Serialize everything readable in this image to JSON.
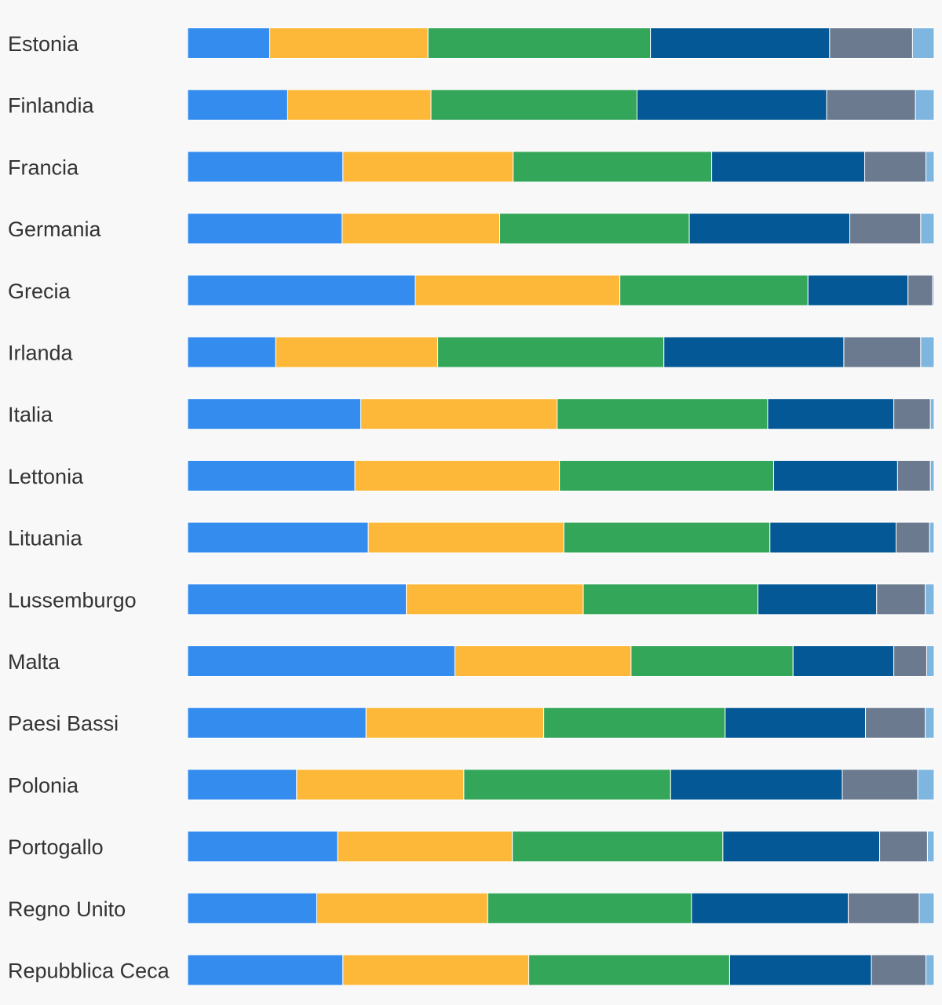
{
  "chart_data": {
    "type": "bar",
    "orientation": "horizontal",
    "stacked": "percent",
    "title": "",
    "xlabel": "",
    "ylabel": "",
    "xlim": [
      0,
      100
    ],
    "grid": false,
    "legend": "none",
    "categories": [
      "Estonia",
      "Finlandia",
      "Francia",
      "Germania",
      "Grecia",
      "Irlanda",
      "Italia",
      "Lettonia",
      "Lituania",
      "Lussemburgo",
      "Malta",
      "Paesi Bassi",
      "Polonia",
      "Portogallo",
      "Regno Unito",
      "Repubblica Ceca"
    ],
    "series": [
      {
        "color": "#348cee",
        "values": [
          11.0,
          13.4,
          20.8,
          20.7,
          30.5,
          11.8,
          23.2,
          22.4,
          24.2,
          29.3,
          35.8,
          23.9,
          14.6,
          20.1,
          17.3,
          20.8
        ]
      },
      {
        "color": "#fdb83a",
        "values": [
          21.2,
          19.2,
          22.8,
          21.1,
          27.4,
          21.7,
          26.3,
          27.4,
          26.2,
          23.7,
          23.6,
          23.8,
          22.4,
          23.4,
          22.9,
          24.9
        ]
      },
      {
        "color": "#34a65a",
        "values": [
          29.8,
          27.6,
          26.6,
          25.4,
          25.2,
          30.3,
          28.2,
          28.7,
          27.6,
          23.4,
          21.7,
          24.3,
          27.7,
          28.2,
          27.3,
          26.9
        ]
      },
      {
        "color": "#035895",
        "values": [
          24.0,
          25.4,
          20.5,
          21.5,
          13.4,
          24.1,
          16.9,
          16.6,
          16.9,
          15.9,
          13.5,
          18.8,
          23.0,
          21.0,
          21.0,
          19.0
        ]
      },
      {
        "color": "#6b7a8f",
        "values": [
          11.1,
          11.9,
          8.2,
          9.5,
          3.3,
          10.3,
          4.9,
          4.4,
          4.5,
          6.5,
          4.4,
          8.0,
          10.1,
          6.4,
          9.5,
          7.3
        ]
      },
      {
        "color": "#7fb6e0",
        "values": [
          2.9,
          2.5,
          1.1,
          1.8,
          0.2,
          1.8,
          0.5,
          0.5,
          0.6,
          1.2,
          1.0,
          1.2,
          2.2,
          0.9,
          2.0,
          1.1
        ]
      }
    ]
  }
}
